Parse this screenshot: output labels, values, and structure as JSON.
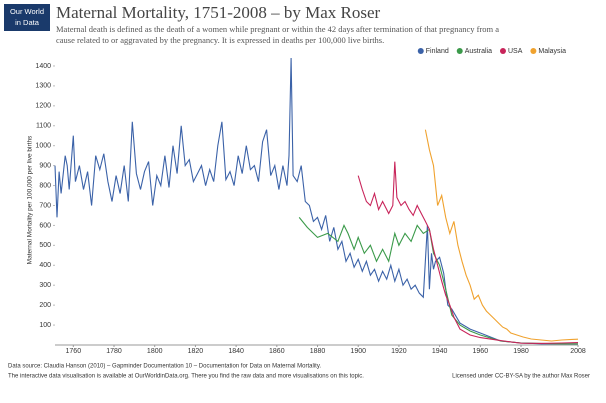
{
  "logo": [
    "Our World",
    "in Data"
  ],
  "chart_data": {
    "type": "line",
    "title": "Maternal Mortality, 1751-2008 – by Max Roser",
    "subtitle": [
      "Maternal death is defined as the death of a women while pregnant or within the 42 days after termination of that pregnancy from a",
      "cause related to or aggravated by the pregnancy. It is expressed in deaths per 100,000 live births."
    ],
    "y_label": "Maternal Mortality per 100,000 per live births",
    "xlim": [
      1751,
      2008
    ],
    "xticks": [
      1760,
      1780,
      1800,
      1820,
      1840,
      1860,
      1880,
      1900,
      1920,
      1940,
      1960,
      1980,
      2008
    ],
    "ylim": [
      0,
      1450
    ],
    "yticks": [
      100,
      200,
      300,
      400,
      500,
      600,
      700,
      800,
      900,
      1000,
      1100,
      1200,
      1300,
      1400
    ],
    "legend": "top-right",
    "series": [
      {
        "name": "Finland",
        "color": "#3b62a8",
        "x": [
          1751,
          1752,
          1753,
          1754,
          1756,
          1757,
          1758,
          1760,
          1761,
          1763,
          1765,
          1767,
          1769,
          1771,
          1773,
          1775,
          1777,
          1779,
          1781,
          1783,
          1785,
          1787,
          1789,
          1791,
          1793,
          1795,
          1797,
          1799,
          1801,
          1803,
          1805,
          1807,
          1809,
          1811,
          1813,
          1815,
          1817,
          1819,
          1821,
          1823,
          1825,
          1827,
          1829,
          1831,
          1833,
          1835,
          1837,
          1839,
          1841,
          1843,
          1845,
          1847,
          1849,
          1851,
          1853,
          1855,
          1857,
          1859,
          1861,
          1863,
          1865,
          1866,
          1867,
          1868,
          1870,
          1872,
          1874,
          1876,
          1878,
          1880,
          1882,
          1884,
          1886,
          1888,
          1890,
          1892,
          1894,
          1896,
          1898,
          1900,
          1902,
          1904,
          1906,
          1908,
          1910,
          1912,
          1914,
          1916,
          1918,
          1920,
          1922,
          1924,
          1926,
          1928,
          1930,
          1932,
          1934,
          1935,
          1936,
          1937,
          1938,
          1940,
          1942,
          1944,
          1946,
          1950,
          1955,
          1960,
          1970,
          1980,
          1990,
          2000,
          2008
        ],
        "values": [
          900,
          640,
          870,
          760,
          950,
          900,
          780,
          1050,
          820,
          900,
          780,
          870,
          700,
          950,
          880,
          960,
          820,
          720,
          850,
          760,
          900,
          720,
          1120,
          860,
          780,
          870,
          920,
          700,
          850,
          800,
          950,
          790,
          1000,
          860,
          1100,
          900,
          930,
          820,
          860,
          900,
          800,
          880,
          820,
          1000,
          1120,
          830,
          870,
          800,
          950,
          860,
          1000,
          880,
          900,
          820,
          1020,
          1080,
          850,
          900,
          780,
          900,
          800,
          950,
          1440,
          850,
          820,
          900,
          720,
          700,
          620,
          640,
          580,
          650,
          520,
          590,
          480,
          520,
          420,
          460,
          390,
          430,
          370,
          420,
          350,
          380,
          320,
          370,
          330,
          400,
          320,
          380,
          300,
          330,
          280,
          300,
          260,
          240,
          600,
          280,
          460,
          380,
          420,
          440,
          360,
          200,
          180,
          110,
          80,
          60,
          20,
          10,
          6,
          6,
          5
        ]
      },
      {
        "name": "Australia",
        "color": "#3b9a4a",
        "x": [
          1871,
          1875,
          1880,
          1885,
          1890,
          1893,
          1895,
          1898,
          1900,
          1903,
          1906,
          1909,
          1912,
          1915,
          1918,
          1920,
          1923,
          1926,
          1929,
          1932,
          1935,
          1937,
          1940,
          1943,
          1946,
          1950,
          1955,
          1960,
          1970,
          1980,
          2000,
          2008
        ],
        "values": [
          640,
          590,
          540,
          560,
          520,
          600,
          560,
          480,
          540,
          460,
          500,
          420,
          480,
          420,
          560,
          500,
          560,
          520,
          600,
          560,
          580,
          460,
          400,
          280,
          150,
          100,
          70,
          50,
          20,
          10,
          6,
          6
        ]
      },
      {
        "name": "USA",
        "color": "#c8245a",
        "x": [
          1900,
          1902,
          1904,
          1906,
          1908,
          1910,
          1912,
          1914,
          1915,
          1917,
          1918,
          1919,
          1921,
          1923,
          1925,
          1927,
          1929,
          1931,
          1933,
          1935,
          1937,
          1939,
          1941,
          1943,
          1945,
          1947,
          1950,
          1955,
          1960,
          1970,
          1980,
          1990,
          2000,
          2008
        ],
        "values": [
          850,
          780,
          720,
          700,
          760,
          680,
          720,
          680,
          660,
          700,
          920,
          740,
          700,
          720,
          680,
          650,
          700,
          660,
          620,
          580,
          480,
          400,
          320,
          250,
          200,
          140,
          80,
          50,
          37,
          22,
          9,
          8,
          10,
          12
        ]
      },
      {
        "name": "Malaysia",
        "color": "#f0a22e",
        "x": [
          1933,
          1935,
          1937,
          1939,
          1941,
          1943,
          1945,
          1947,
          1949,
          1951,
          1953,
          1955,
          1957,
          1959,
          1961,
          1963,
          1965,
          1967,
          1969,
          1971,
          1973,
          1975,
          1978,
          1981,
          1985,
          1990,
          1995,
          2000,
          2005,
          2008
        ],
        "values": [
          1080,
          980,
          900,
          700,
          750,
          640,
          560,
          620,
          500,
          420,
          350,
          300,
          230,
          250,
          200,
          170,
          150,
          130,
          110,
          90,
          80,
          60,
          50,
          40,
          30,
          25,
          20,
          25,
          28,
          29
        ]
      }
    ],
    "source": "Data source: Claudia Hanson (2010) – Gapminder Documentation 10 – Documentation for Data on Maternal Mortality.",
    "note": "The interactive data visualisation is available at OurWorldinData.org. There you find the raw data and more visualisations on this topic.",
    "license": "Licensed under CC-BY-SA by the author Max Roser"
  }
}
